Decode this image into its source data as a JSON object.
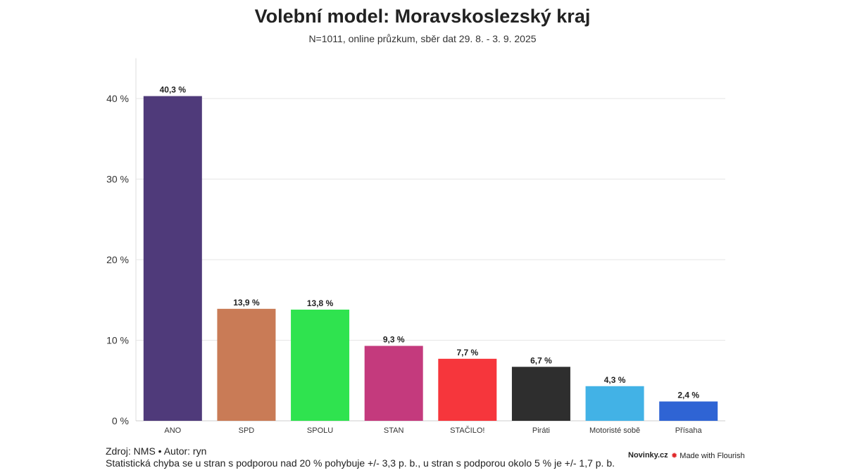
{
  "chart_data": {
    "type": "bar",
    "title": "Volební model: Moravskoslezský kraj",
    "subtitle": "N=1011, online průzkum, sběr dat 29. 8. - 3. 9. 2025",
    "categories": [
      "ANO",
      "SPD",
      "SPOLU",
      "STAN",
      "STAČILO!",
      "Piráti",
      "Motoristé sobě",
      "Přísaha"
    ],
    "values": [
      40.3,
      13.9,
      13.8,
      9.3,
      7.7,
      6.7,
      4.3,
      2.4
    ],
    "data_labels": [
      "40,3 %",
      "13,9 %",
      "13,8 %",
      "9,3 %",
      "7,7 %",
      "6,7 %",
      "4,3 %",
      "2,4 %"
    ],
    "colors": [
      "#4f3a7a",
      "#c97b56",
      "#2fe34f",
      "#c43a7d",
      "#f6363c",
      "#2e2e2e",
      "#42b2e6",
      "#2f64d4"
    ],
    "yticks": [
      "0 %",
      "10 %",
      "20 %",
      "30 %",
      "40 %"
    ],
    "ytick_values": [
      0,
      10,
      20,
      30,
      40
    ],
    "ylim": [
      0,
      45
    ],
    "grid": true,
    "xlabel": "",
    "ylabel": ""
  },
  "footer": {
    "source": "Zdroj: NMS • Autor: ryn",
    "note": "Statistická chyba se u stran s podporou nad 20 % pohybuje +/- 3,3 p. b., u stran s podporou okolo 5 % je +/- 1,7 p. b.",
    "brand": "Novinky.cz",
    "flourish": "Made with Flourish"
  }
}
